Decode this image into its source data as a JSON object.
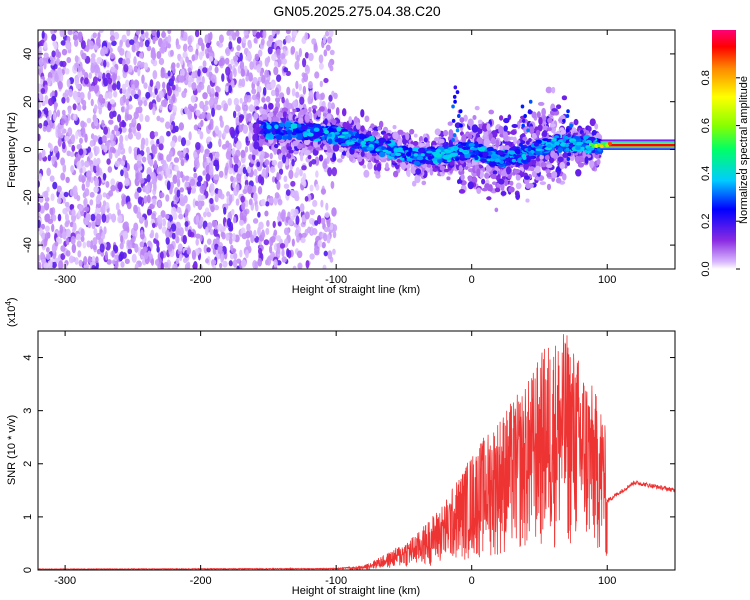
{
  "title": "GN05.2025.275.04.38.C20",
  "chart_data": [
    {
      "type": "heatmap",
      "name": "spectrogram",
      "xlabel": "Height of straight line (km)",
      "ylabel": "Frequency (Hz)",
      "xlim": [
        -320,
        150
      ],
      "ylim": [
        -50,
        50
      ],
      "xticks": [
        -300,
        -200,
        -100,
        0,
        100
      ],
      "yticks": [
        -40,
        -20,
        0,
        20,
        40
      ],
      "colorbar": {
        "label": "Normalized spectral amplitude",
        "range": [
          0,
          1
        ],
        "ticks": [
          0.0,
          0.2,
          0.4,
          0.6,
          0.8
        ]
      },
      "features": {
        "noise_band": {
          "x_range": [
            -320,
            -100
          ],
          "freq_range": [
            -50,
            50
          ],
          "amplitude": 0.1
        },
        "signal_ridge": [
          {
            "x": -155,
            "f": 8
          },
          {
            "x": -130,
            "f": 8
          },
          {
            "x": -100,
            "f": 6
          },
          {
            "x": -80,
            "f": 3
          },
          {
            "x": -60,
            "f": 0
          },
          {
            "x": -40,
            "f": -3
          },
          {
            "x": -20,
            "f": -2
          },
          {
            "x": 0,
            "f": 0
          },
          {
            "x": 20,
            "f": -4
          },
          {
            "x": 40,
            "f": -2
          },
          {
            "x": 60,
            "f": 3
          },
          {
            "x": 80,
            "f": 2
          },
          {
            "x": 95,
            "f": 2
          }
        ],
        "steady_line": {
          "x_range": [
            95,
            150
          ],
          "freq": 2,
          "amplitude": 1.0
        }
      }
    },
    {
      "type": "line",
      "name": "snr",
      "xlabel": "Height of straight line (km)",
      "ylabel": "SNR (10 * v/v)",
      "scale_label": "(x10",
      "scale_exponent": "4",
      "scale_close": ")",
      "xlim": [
        -320,
        150
      ],
      "ylim": [
        0,
        4.5
      ],
      "xticks": [
        -300,
        -200,
        -100,
        0,
        100
      ],
      "yticks": [
        0,
        1,
        2,
        3,
        4
      ],
      "color": "#ee3333",
      "envelope": [
        {
          "x": -320,
          "v": 0.02
        },
        {
          "x": -100,
          "v": 0.03
        },
        {
          "x": -80,
          "v": 0.08
        },
        {
          "x": -60,
          "v": 0.35
        },
        {
          "x": -40,
          "v": 0.7
        },
        {
          "x": -20,
          "v": 1.3
        },
        {
          "x": 0,
          "v": 2.2
        },
        {
          "x": 20,
          "v": 2.9
        },
        {
          "x": 40,
          "v": 3.5
        },
        {
          "x": 55,
          "v": 4.3
        },
        {
          "x": 70,
          "v": 4.5
        },
        {
          "x": 85,
          "v": 3.7
        },
        {
          "x": 98,
          "v": 3.0
        },
        {
          "x": 100,
          "v": 1.3
        },
        {
          "x": 120,
          "v": 1.65
        },
        {
          "x": 150,
          "v": 1.5
        }
      ]
    }
  ]
}
